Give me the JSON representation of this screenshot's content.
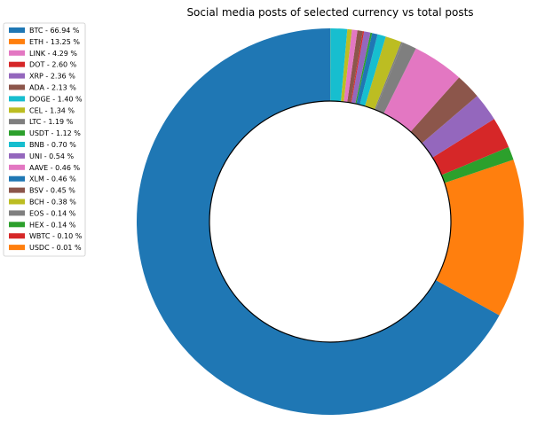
{
  "chart_data": {
    "type": "pie",
    "variant": "donut",
    "title": "Social media posts of selected currency vs total posts",
    "legend_position": "top-left",
    "start_angle_deg": 90,
    "direction": "counterclockwise",
    "slices": [
      {
        "label": "BTC - 66.94 %",
        "value": 66.94,
        "color": "#1f77b4"
      },
      {
        "label": "ETH - 13.25 %",
        "value": 13.25,
        "color": "#ff7f0e"
      },
      {
        "label": "LINK - 4.29 %",
        "value": 4.29,
        "color": "#e377c2"
      },
      {
        "label": "DOT - 2.60 %",
        "value": 2.6,
        "color": "#d62728"
      },
      {
        "label": "XRP - 2.36 %",
        "value": 2.36,
        "color": "#9467bd"
      },
      {
        "label": "ADA - 2.13 %",
        "value": 2.13,
        "color": "#8c564b"
      },
      {
        "label": "DOGE - 1.40 %",
        "value": 1.4,
        "color": "#17becf"
      },
      {
        "label": "CEL - 1.34 %",
        "value": 1.34,
        "color": "#bcbd22"
      },
      {
        "label": "LTC - 1.19 %",
        "value": 1.19,
        "color": "#7f7f7f"
      },
      {
        "label": "USDT - 1.12 %",
        "value": 1.12,
        "color": "#2ca02c"
      },
      {
        "label": "BNB - 0.70 %",
        "value": 0.7,
        "color": "#17becf"
      },
      {
        "label": "UNI - 0.54 %",
        "value": 0.54,
        "color": "#9467bd"
      },
      {
        "label": "AAVE - 0.46 %",
        "value": 0.46,
        "color": "#e377c2"
      },
      {
        "label": "XLM - 0.46 %",
        "value": 0.46,
        "color": "#1f77b4"
      },
      {
        "label": "BSV - 0.45 %",
        "value": 0.45,
        "color": "#8c564b"
      },
      {
        "label": "BCH - 0.38 %",
        "value": 0.38,
        "color": "#bcbd22"
      },
      {
        "label": "EOS - 0.14 %",
        "value": 0.14,
        "color": "#7f7f7f"
      },
      {
        "label": "HEX - 0.14 %",
        "value": 0.14,
        "color": "#2ca02c"
      },
      {
        "label": "WBTC - 0.10 %",
        "value": 0.1,
        "color": "#d62728"
      },
      {
        "label": "USDC - 0.01 %",
        "value": 0.01,
        "color": "#ff7f0e"
      }
    ],
    "slice_order": [
      "BTC",
      "ETH",
      "USDT",
      "DOT",
      "XRP",
      "ADA",
      "LINK",
      "LTC",
      "EOS",
      "CEL",
      "BNB",
      "XLM",
      "HEX",
      "UNI",
      "WBTC",
      "BSV",
      "AAVE",
      "BCH",
      "DOGE",
      "USDC"
    ]
  }
}
